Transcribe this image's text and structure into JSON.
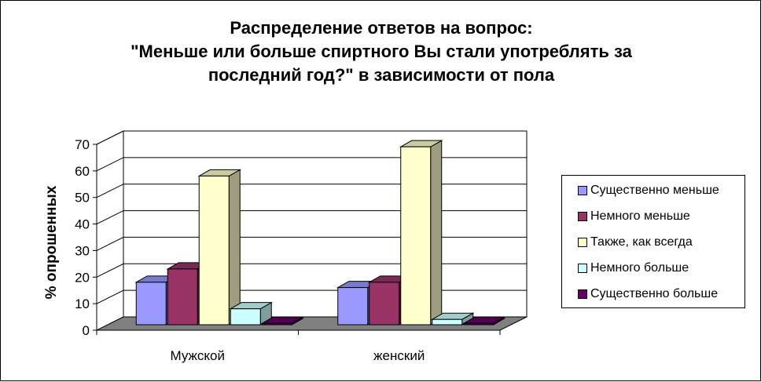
{
  "title_lines": [
    "Распределение ответов на вопрос:",
    "\"Меньше или больше спиртного Вы стали употреблять за",
    "последний год?\"  в зависимости от пола"
  ],
  "chart_data": {
    "type": "bar",
    "title": "Распределение ответов на вопрос: \"Меньше или больше спиртного Вы стали употреблять за последний год?\"  в зависимости от пола",
    "xlabel": "",
    "ylabel": "% опрошенных",
    "ylim": [
      0,
      70
    ],
    "yticks": [
      0,
      10,
      20,
      30,
      40,
      50,
      60,
      70
    ],
    "categories": [
      "Мужской",
      "женский"
    ],
    "series": [
      {
        "name": "Существенно меньше",
        "values": [
          16,
          14
        ],
        "color": "#9999ff"
      },
      {
        "name": "Немного меньше",
        "values": [
          21,
          16
        ],
        "color": "#993366"
      },
      {
        "name": "Также, как всегда",
        "values": [
          56,
          67
        ],
        "color": "#ffffcc"
      },
      {
        "name": "Немного больше",
        "values": [
          6,
          2
        ],
        "color": "#ccffff"
      },
      {
        "name": "Существенно больше",
        "values": [
          0.5,
          0.5
        ],
        "color": "#660066"
      }
    ],
    "grid": true,
    "legend_position": "right",
    "style": "3d-clustered-column",
    "wall_color": "#ffffff",
    "floor_color": "#808080"
  }
}
